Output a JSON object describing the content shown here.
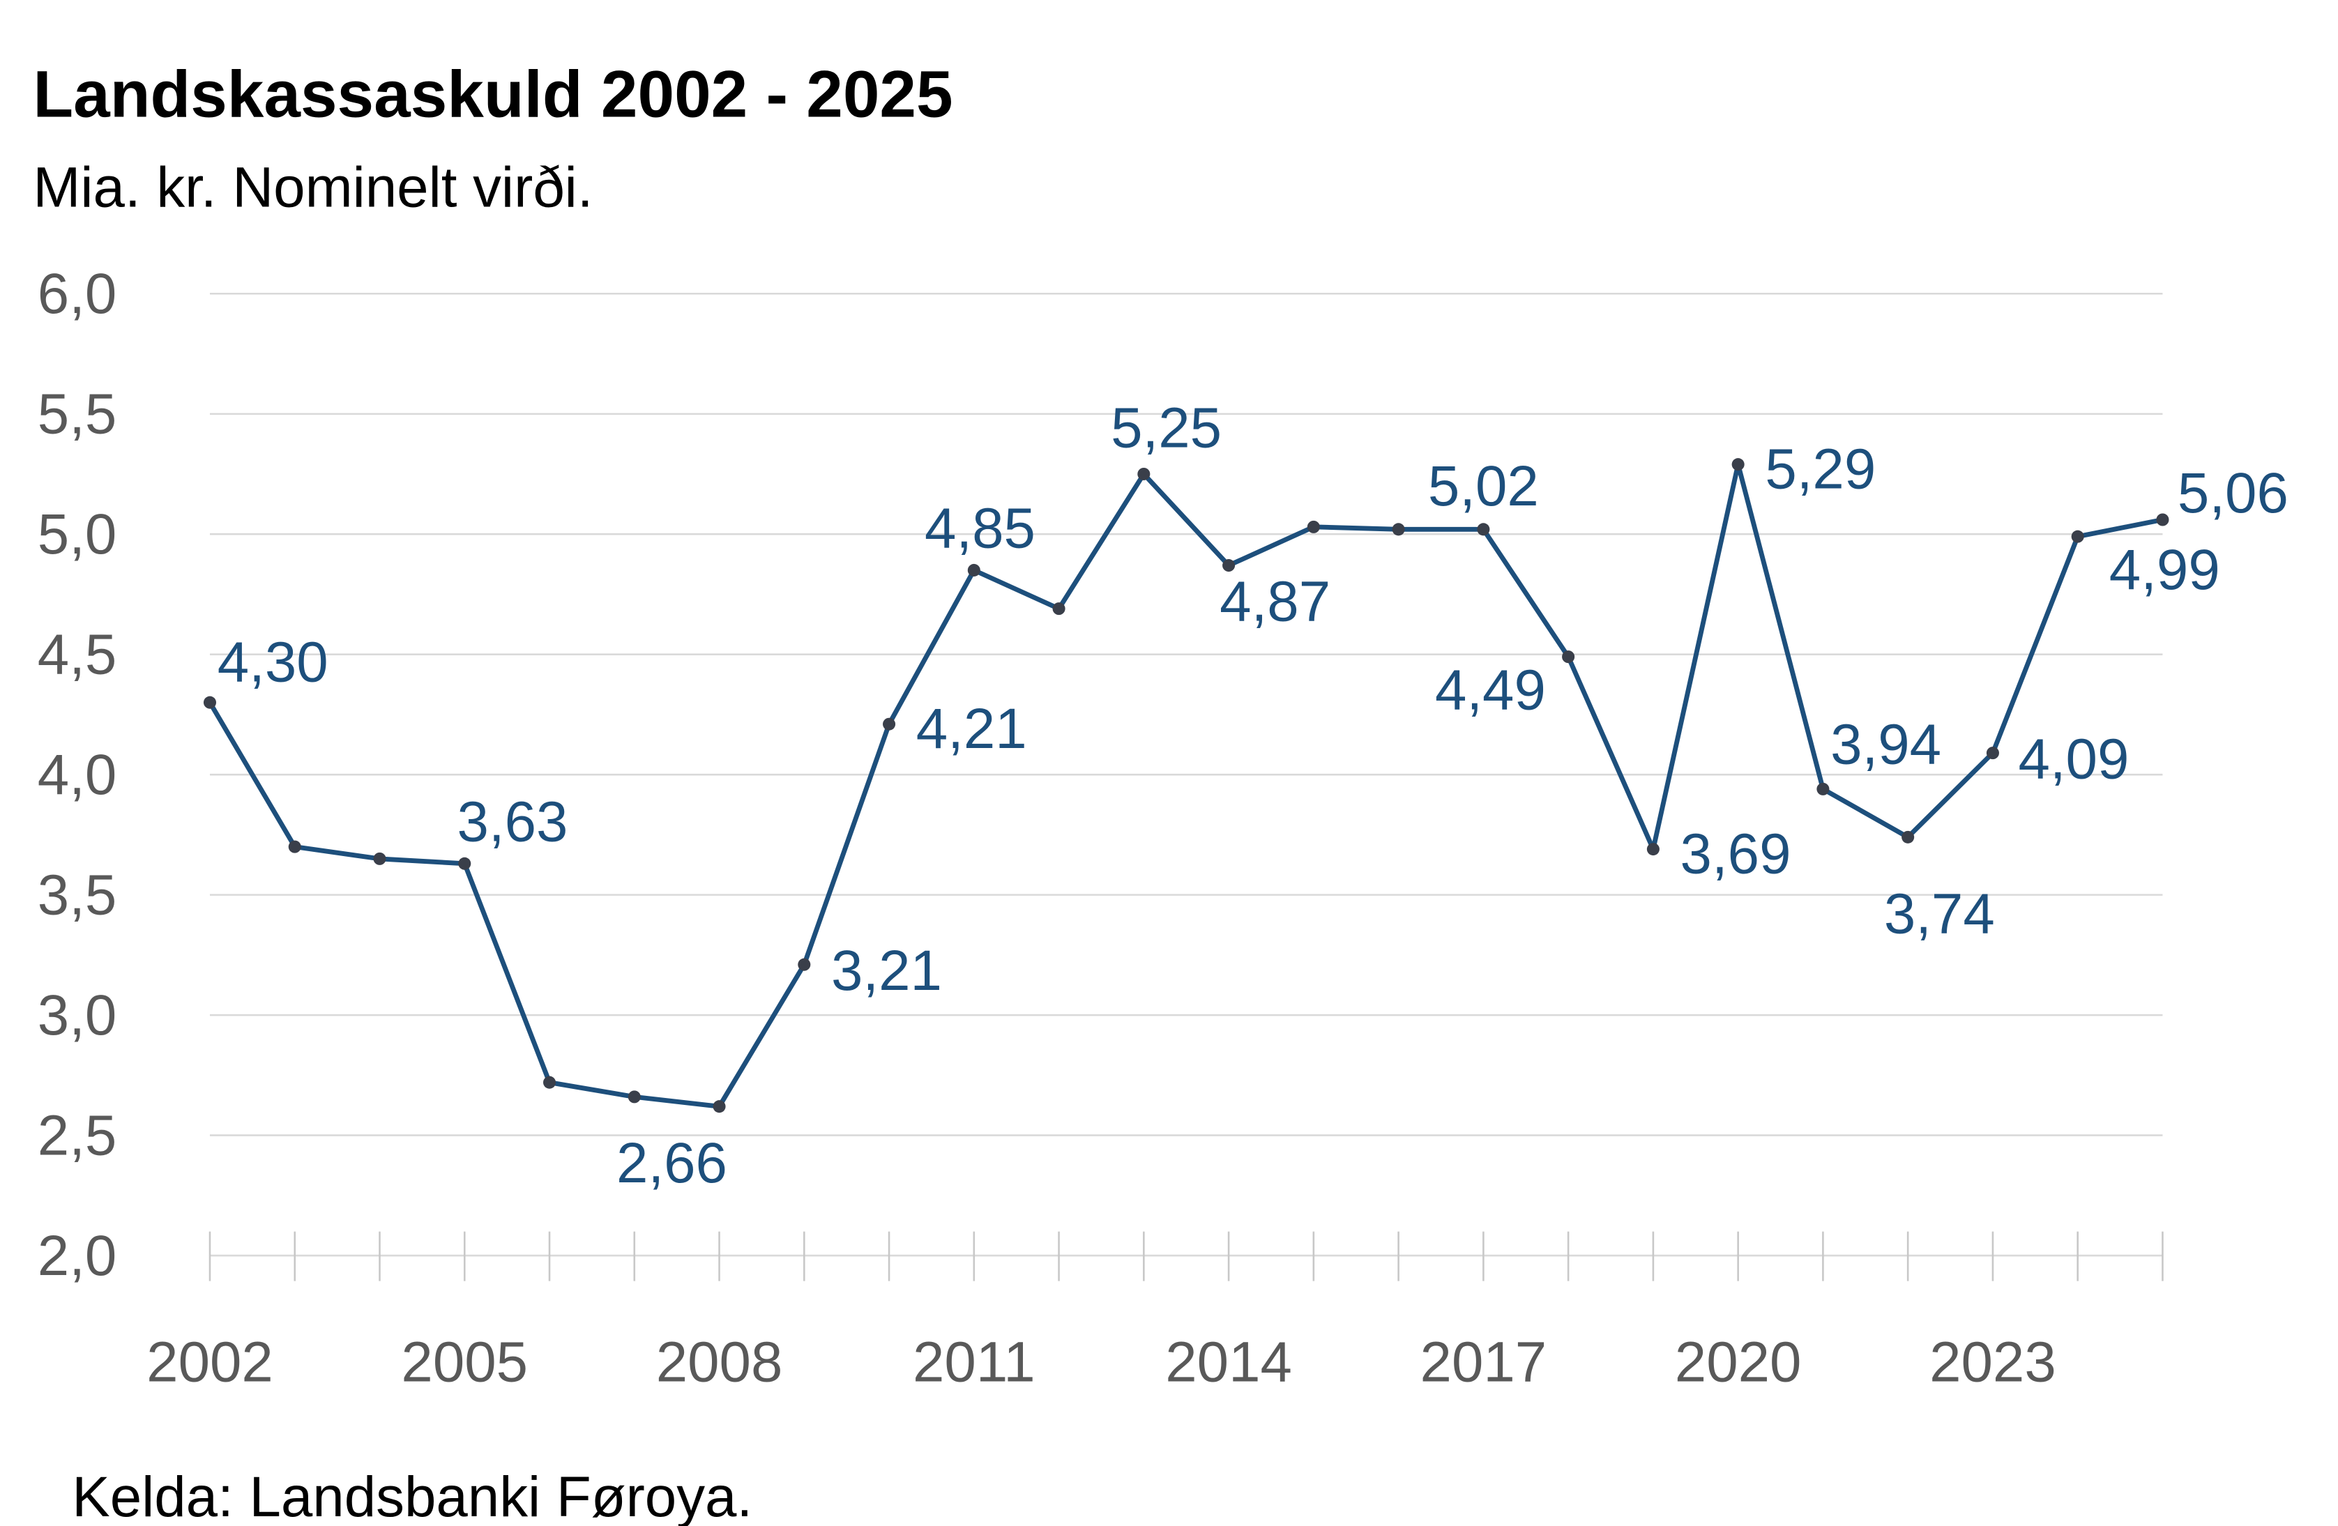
{
  "chart_data": {
    "type": "line",
    "title": "Landskassaskuld 2002 - 2025",
    "subtitle": "Mia. kr. Nominelt virði.",
    "source": "Kelda: Landsbanki Føroya.",
    "xlabel": "",
    "ylabel": "",
    "ylim": [
      2.0,
      6.0
    ],
    "grid": true,
    "line_color": "#1d4f7c",
    "marker_color": "#3a3f4a",
    "y_ticks": [
      "2,0",
      "2,5",
      "3,0",
      "3,5",
      "4,0",
      "4,5",
      "5,0",
      "5,5",
      "6,0"
    ],
    "x_tick_labels": [
      "2002",
      "2005",
      "2008",
      "2011",
      "2014",
      "2017",
      "2020",
      "2023"
    ],
    "x": [
      2002,
      2003,
      2004,
      2005,
      2006,
      2007,
      2008,
      2009,
      2010,
      2011,
      2012,
      2013,
      2014,
      2015,
      2016,
      2017,
      2018,
      2019,
      2020,
      2021,
      2022,
      2023,
      2024,
      2025
    ],
    "values": [
      4.3,
      3.7,
      3.65,
      3.63,
      2.72,
      2.66,
      2.62,
      3.21,
      4.21,
      4.85,
      4.69,
      5.25,
      4.87,
      5.03,
      5.02,
      5.02,
      4.49,
      3.69,
      5.29,
      3.94,
      3.74,
      4.09,
      4.99,
      5.06
    ],
    "labeled_years": [
      2002,
      2005,
      2007,
      2009,
      2010,
      2011,
      2013,
      2014,
      2017,
      2018,
      2019,
      2020,
      2021,
      2022,
      2023,
      2024,
      2025
    ]
  }
}
